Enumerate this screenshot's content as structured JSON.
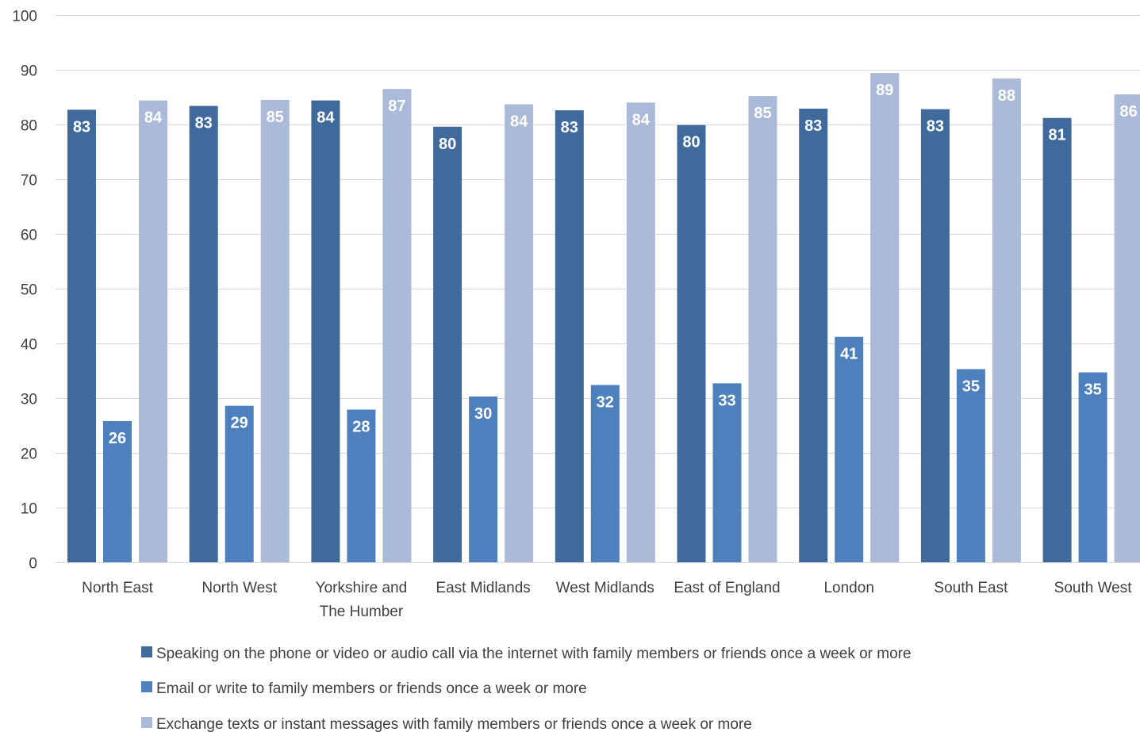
{
  "chart_data": {
    "type": "bar",
    "title": "",
    "xlabel": "",
    "ylabel": "",
    "ylim": [
      0,
      100
    ],
    "y_ticks": [
      0,
      10,
      20,
      30,
      40,
      50,
      60,
      70,
      80,
      90,
      100
    ],
    "grid": true,
    "legend_position": "bottom",
    "categories": [
      [
        "North East"
      ],
      [
        "North West"
      ],
      [
        "Yorkshire and",
        "The Humber"
      ],
      [
        "East Midlands"
      ],
      [
        "West Midlands"
      ],
      [
        "East of England"
      ],
      [
        "London"
      ],
      [
        "South East"
      ],
      [
        "South West"
      ]
    ],
    "series": [
      {
        "name": "Speaking on the phone or video or audio call via the internet with family members or friends once a week or more",
        "color": "#416a9c",
        "values": [
          82.7,
          83.4,
          84.4,
          79.6,
          82.6,
          79.9,
          82.9,
          82.8,
          81.2
        ],
        "labels": [
          "83",
          "83",
          "84",
          "80",
          "83",
          "80",
          "83",
          "83",
          "81"
        ]
      },
      {
        "name": "Email or write to family members or friends once a week or more",
        "color": "#4e80bd",
        "values": [
          25.8,
          28.6,
          27.9,
          30.3,
          32.4,
          32.7,
          41.2,
          35.3,
          34.7
        ],
        "labels": [
          "26",
          "29",
          "28",
          "30",
          "32",
          "33",
          "41",
          "35",
          "35"
        ]
      },
      {
        "name": "Exchange texts or instant messages with family members or friends once a week or more",
        "color": "#aabad8",
        "values": [
          84.4,
          84.5,
          86.5,
          83.7,
          84.0,
          85.2,
          89.4,
          88.4,
          85.5
        ],
        "labels": [
          "84",
          "85",
          "87",
          "84",
          "84",
          "85",
          "89",
          "88",
          "86"
        ]
      }
    ]
  }
}
